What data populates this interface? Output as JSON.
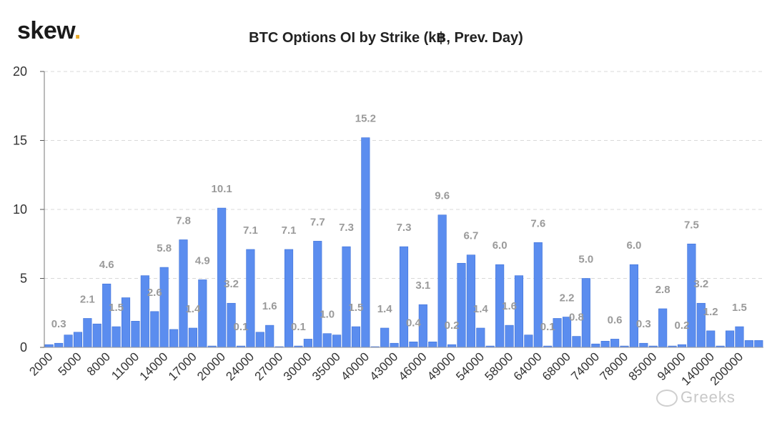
{
  "logo": {
    "text": "skew",
    "dot": "."
  },
  "watermark": {
    "text": "Greeks"
  },
  "colors": {
    "bar": "#5b8def",
    "bar_edge": "#3f72d9",
    "grid": "#d9d9d9",
    "label": "#9a9a9a",
    "logo_dot": "#e8a92a"
  },
  "chart_data": {
    "type": "bar",
    "title": "BTC Options OI by Strike (k฿, Prev. Day)",
    "xlabel": "",
    "ylabel": "",
    "ylim": [
      0,
      20
    ],
    "yticks": [
      0,
      5,
      10,
      15,
      20
    ],
    "grid": "horizontal dashed",
    "legend": "none",
    "x_tick_labels": [
      "2000",
      "5000",
      "8000",
      "11000",
      "14000",
      "17000",
      "20000",
      "24000",
      "27000",
      "30000",
      "35000",
      "40000",
      "43000",
      "46000",
      "49000",
      "54000",
      "58000",
      "64000",
      "68000",
      "74000",
      "78000",
      "85000",
      "94000",
      "140000",
      "200000"
    ],
    "values": [
      0.2,
      0.3,
      0.9,
      1.1,
      2.1,
      1.7,
      4.6,
      1.5,
      3.6,
      1.9,
      5.2,
      2.6,
      5.8,
      1.3,
      7.8,
      1.4,
      4.9,
      0.1,
      10.1,
      3.2,
      0.1,
      7.1,
      1.1,
      1.6,
      0.05,
      7.1,
      0.1,
      0.6,
      7.7,
      1.0,
      0.9,
      7.3,
      1.5,
      15.2,
      0.05,
      1.4,
      0.3,
      7.3,
      0.4,
      3.1,
      0.4,
      9.6,
      0.2,
      6.1,
      6.7,
      1.4,
      0.1,
      6.0,
      1.6,
      5.2,
      0.9,
      7.6,
      0.1,
      2.1,
      2.2,
      0.8,
      5.0,
      0.25,
      0.45,
      0.6,
      0.1,
      6.0,
      0.3,
      0.1,
      2.8,
      0.1,
      0.2,
      7.5,
      3.2,
      1.2,
      0.1,
      1.2,
      1.5,
      0.5,
      0.5
    ],
    "data_labels": [
      {
        "index": 1,
        "text": "0.3"
      },
      {
        "index": 4,
        "text": "2.1"
      },
      {
        "index": 6,
        "text": "4.6"
      },
      {
        "index": 7,
        "text": "1.5"
      },
      {
        "index": 11,
        "text": "2.6"
      },
      {
        "index": 12,
        "text": "5.8"
      },
      {
        "index": 14,
        "text": "7.8"
      },
      {
        "index": 15,
        "text": "1.4"
      },
      {
        "index": 16,
        "text": "4.9"
      },
      {
        "index": 18,
        "text": "10.1"
      },
      {
        "index": 19,
        "text": "3.2"
      },
      {
        "index": 20,
        "text": "0.1"
      },
      {
        "index": 21,
        "text": "7.1"
      },
      {
        "index": 23,
        "text": "1.6"
      },
      {
        "index": 25,
        "text": "7.1"
      },
      {
        "index": 26,
        "text": "0.1"
      },
      {
        "index": 28,
        "text": "7.7"
      },
      {
        "index": 29,
        "text": "1.0"
      },
      {
        "index": 31,
        "text": "7.3"
      },
      {
        "index": 32,
        "text": "1.5"
      },
      {
        "index": 33,
        "text": "15.2"
      },
      {
        "index": 35,
        "text": "1.4"
      },
      {
        "index": 37,
        "text": "7.3"
      },
      {
        "index": 38,
        "text": "0.4"
      },
      {
        "index": 39,
        "text": "3.1"
      },
      {
        "index": 41,
        "text": "9.6"
      },
      {
        "index": 42,
        "text": "0.2"
      },
      {
        "index": 44,
        "text": "6.7"
      },
      {
        "index": 45,
        "text": "1.4"
      },
      {
        "index": 47,
        "text": "6.0"
      },
      {
        "index": 48,
        "text": "1.6"
      },
      {
        "index": 51,
        "text": "7.6"
      },
      {
        "index": 52,
        "text": "0.1"
      },
      {
        "index": 54,
        "text": "2.2"
      },
      {
        "index": 55,
        "text": "0.8"
      },
      {
        "index": 56,
        "text": "5.0"
      },
      {
        "index": 59,
        "text": "0.6"
      },
      {
        "index": 61,
        "text": "6.0"
      },
      {
        "index": 62,
        "text": "0.3"
      },
      {
        "index": 64,
        "text": "2.8"
      },
      {
        "index": 66,
        "text": "0.2"
      },
      {
        "index": 67,
        "text": "7.5"
      },
      {
        "index": 68,
        "text": "3.2"
      },
      {
        "index": 69,
        "text": "1.2"
      },
      {
        "index": 72,
        "text": "1.5"
      }
    ]
  }
}
